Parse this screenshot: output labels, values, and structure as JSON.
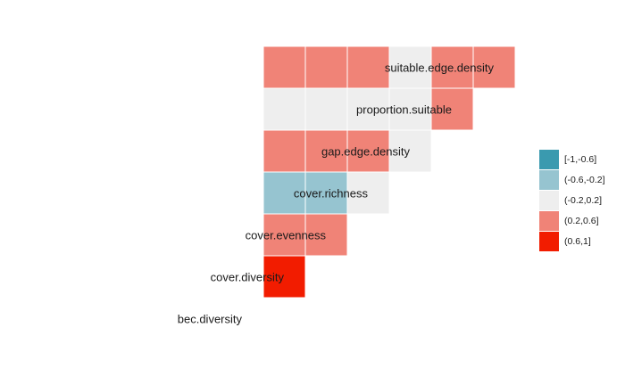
{
  "chart_data": {
    "type": "heatmap",
    "title": "",
    "variables": [
      "bec.diversity",
      "cover.diversity",
      "cover.evenness",
      "cover.richness",
      "gap.edge.density",
      "proportion.suitable",
      "suitable.edge.density"
    ],
    "rows": [
      {
        "variable": "cover.diversity",
        "cells": [
          "(0.6,1]"
        ]
      },
      {
        "variable": "cover.evenness",
        "cells": [
          "(0.2,0.6]",
          "(0.2,0.6]"
        ]
      },
      {
        "variable": "cover.richness",
        "cells": [
          "(-0.6,-0.2]",
          "(-0.6,-0.2]",
          "(-0.2,0.2]"
        ]
      },
      {
        "variable": "gap.edge.density",
        "cells": [
          "(0.2,0.6]",
          "(0.2,0.6]",
          "(0.2,0.6]",
          "(-0.2,0.2]"
        ]
      },
      {
        "variable": "proportion.suitable",
        "cells": [
          "(-0.2,0.2]",
          "(-0.2,0.2]",
          "(-0.2,0.2]",
          "(-0.2,0.2]",
          "(0.2,0.6]"
        ]
      },
      {
        "variable": "suitable.edge.density",
        "cells": [
          "(0.2,0.6]",
          "(0.2,0.6]",
          "(0.2,0.6]",
          "(-0.2,0.2]",
          "(0.2,0.6]",
          "(0.2,0.6]"
        ]
      }
    ],
    "legend": {
      "position": "right",
      "categories": [
        "[-1,-0.6]",
        "(-0.6,-0.2]",
        "(-0.2,0.2]",
        "(0.2,0.6]",
        "(0.6,1]"
      ],
      "colors": [
        "#3a9aaf",
        "#96c4d0",
        "#eeeeee",
        "#f08377",
        "#f21c00"
      ]
    }
  }
}
